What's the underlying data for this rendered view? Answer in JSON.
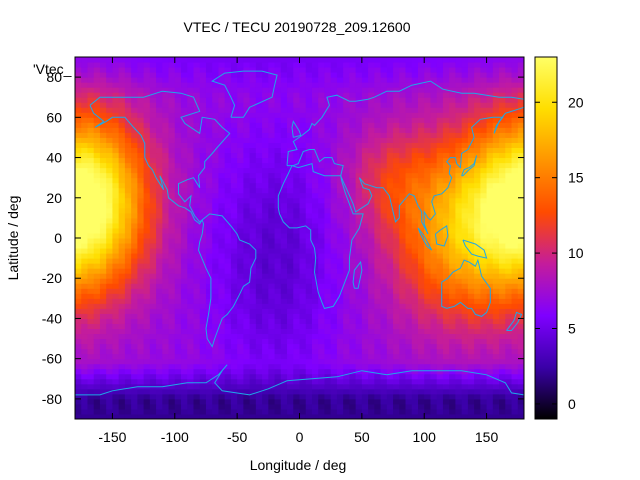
{
  "chart_data": {
    "type": "heatmap",
    "title": "VTEC / TECU 20190728_209.12600",
    "xlabel": "Longitude / deg",
    "ylabel": "Latitude / deg",
    "series_label": "'Vtec_",
    "xlim": [
      -180,
      180
    ],
    "ylim": [
      -90,
      90
    ],
    "x_ticks": [
      -150,
      -100,
      -50,
      0,
      50,
      100,
      150
    ],
    "y_ticks": [
      -80,
      -60,
      -40,
      -20,
      0,
      20,
      40,
      60,
      80
    ],
    "colorbar": {
      "range": [
        -1,
        23
      ],
      "ticks": [
        0,
        5,
        10,
        15,
        20
      ],
      "palette": [
        "#000000",
        "#3a00a8",
        "#7f00ff",
        "#c41c9c",
        "#ff4b00",
        "#ff9500",
        "#ffde00",
        "#ffff66"
      ]
    },
    "features": {
      "night_minimum_tecu": 7,
      "dawn_low_tecu": 4,
      "polar_tecu": 2,
      "peaks": [
        {
          "lon": -170,
          "lat": 18,
          "value": 23
        },
        {
          "lon": 130,
          "lat": 5,
          "value": 17
        },
        {
          "lon": 70,
          "lat": 30,
          "value": 13
        }
      ]
    },
    "map_color": "#1ea8e8",
    "grid": false,
    "legend": "right colorbar"
  }
}
